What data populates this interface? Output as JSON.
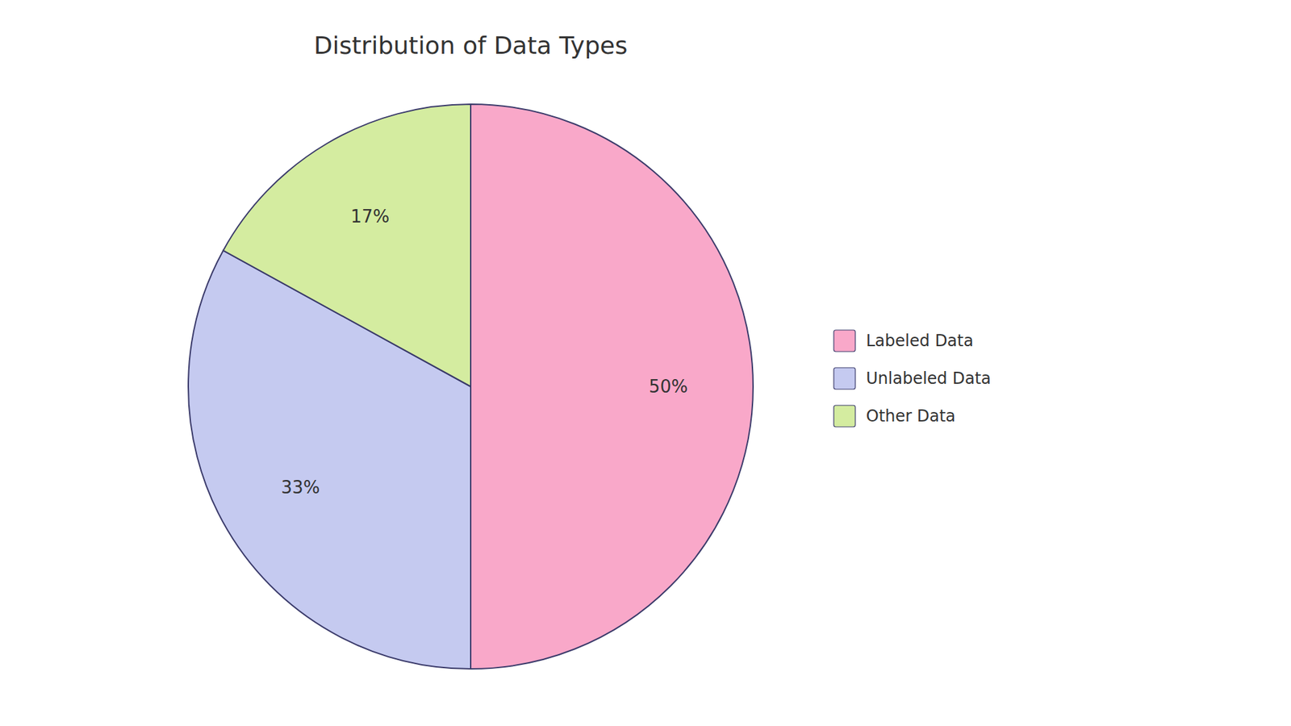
{
  "chart_data": {
    "type": "pie",
    "title": "Distribution of Data Types",
    "categories": [
      "Labeled Data",
      "Unlabeled Data",
      "Other Data"
    ],
    "values": [
      50,
      33,
      17
    ],
    "value_labels": [
      "50%",
      "33%",
      "17%"
    ],
    "colors": [
      "#F9A8C9",
      "#C5CAF0",
      "#D4ECA0"
    ],
    "data_labels": true,
    "legend": "right"
  }
}
